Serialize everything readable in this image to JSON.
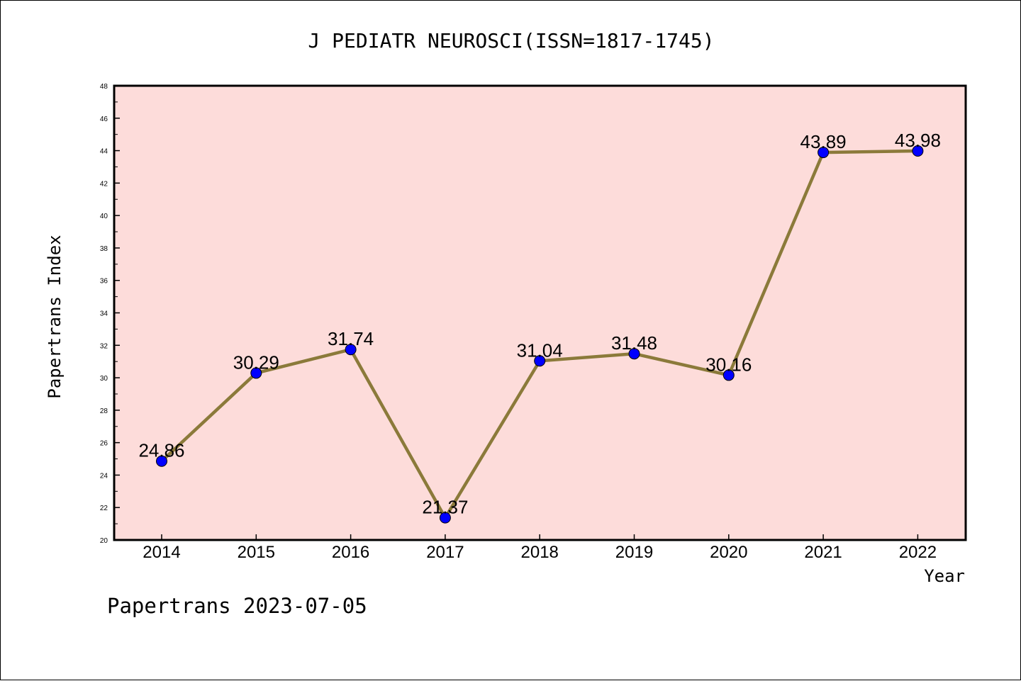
{
  "chart_data": {
    "type": "line",
    "title": "J PEDIATR NEUROSCI(ISSN=1817-1745)",
    "xlabel": "Year",
    "ylabel": "Papertrans Index",
    "footer": "Papertrans 2023-07-05",
    "categories": [
      "2014",
      "2015",
      "2016",
      "2017",
      "2018",
      "2019",
      "2020",
      "2021",
      "2022"
    ],
    "series": [
      {
        "values": [
          24.86,
          30.29,
          31.74,
          21.37,
          31.04,
          31.48,
          30.16,
          43.89,
          43.98
        ],
        "labels": [
          "24.86",
          "30.29",
          "31.74",
          "21.37",
          "31.04",
          "31.48",
          "30.16",
          "43.89",
          "43.98"
        ]
      }
    ],
    "ylim": [
      20,
      48
    ],
    "yticks": [
      "20",
      "22",
      "24",
      "26",
      "28",
      "30",
      "32",
      "34",
      "36",
      "38",
      "40",
      "42",
      "44",
      "46",
      "48"
    ],
    "grid": false,
    "colors": {
      "plot_background": "#fddcda",
      "line": "#8b7a3a",
      "marker": "#0000ff"
    }
  }
}
